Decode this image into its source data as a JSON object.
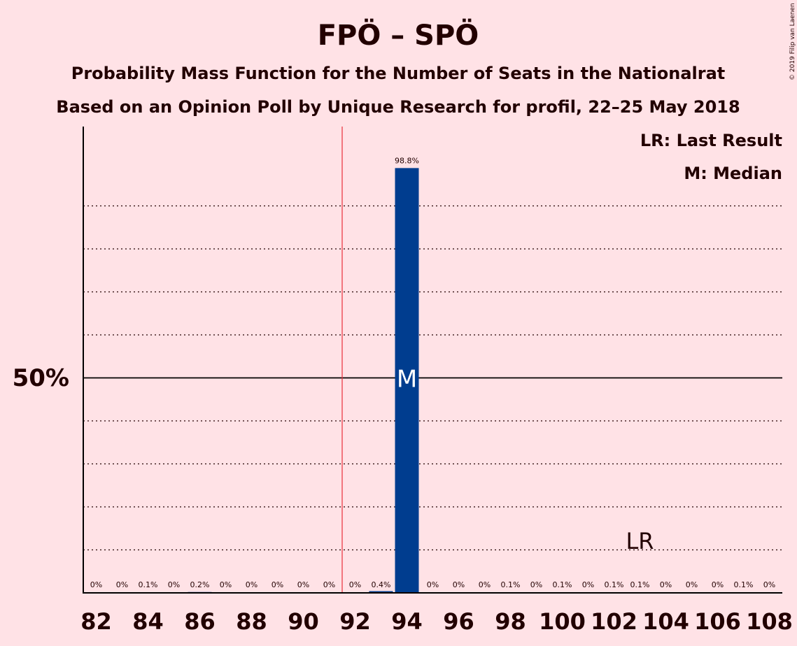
{
  "chart_data": {
    "type": "bar",
    "title": "FPÖ – SPÖ",
    "subtitle": "Probability Mass Function for the Number of Seats in the Nationalrat",
    "subtitle2": "Based on an Opinion Poll by Unique Research for profil, 22–25 May 2018",
    "copyright": "© 2019 Filip van Laenen",
    "legend": {
      "last_result": "LR: Last Result",
      "median": "M: Median",
      "placement": "top-right"
    },
    "y_reference_label": "50%",
    "y_reference_value": 50,
    "ylim": [
      0,
      108.5
    ],
    "gridlines": [
      10,
      20,
      30,
      40,
      60,
      70,
      80,
      90
    ],
    "majority_line_x": 91.5,
    "median_seat": 94,
    "median_label": "M",
    "last_result_seat": 103,
    "last_result_label": "LR",
    "x_tick_labels": [
      "82",
      "84",
      "86",
      "88",
      "90",
      "92",
      "94",
      "96",
      "98",
      "100",
      "102",
      "104",
      "106",
      "108"
    ],
    "x_ticks": [
      82,
      84,
      86,
      88,
      90,
      92,
      94,
      96,
      98,
      100,
      102,
      104,
      106,
      108
    ],
    "seats": [
      82,
      83,
      84,
      85,
      86,
      87,
      88,
      89,
      90,
      91,
      92,
      93,
      94,
      95,
      96,
      97,
      98,
      99,
      100,
      101,
      102,
      103,
      104,
      105,
      106,
      107,
      108
    ],
    "values": [
      0,
      0,
      0.1,
      0,
      0.2,
      0,
      0,
      0,
      0,
      0,
      0,
      0.4,
      98.8,
      0,
      0,
      0,
      0.1,
      0,
      0.1,
      0,
      0.1,
      0.1,
      0,
      0,
      0,
      0.1,
      0
    ],
    "bar_labels": [
      "0%",
      "0%",
      "0.1%",
      "0%",
      "0.2%",
      "0%",
      "0%",
      "0%",
      "0%",
      "0%",
      "0%",
      "0.4%",
      "98.8%",
      "0%",
      "0%",
      "0%",
      "0.1%",
      "0%",
      "0.1%",
      "0%",
      "0.1%",
      "0.1%",
      "0%",
      "0%",
      "0%",
      "0.1%",
      "0%"
    ],
    "colors": {
      "background": "#ffe2e6",
      "bar": "#003d8f",
      "majority_line": "#e8303a",
      "text": "#220000"
    }
  }
}
